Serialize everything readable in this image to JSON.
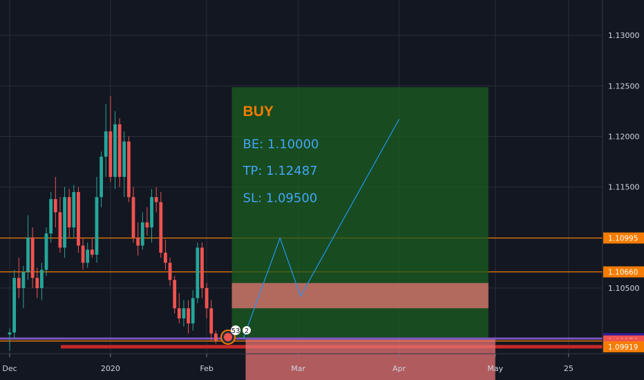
{
  "chart_data": {
    "type": "candlestick",
    "title": "",
    "xlabel": "",
    "ylabel": "",
    "ylim": [
      1.0985,
      1.1335
    ],
    "grid": true,
    "y_ticks": [
      "1.13000",
      "1.12500",
      "1.12000",
      "1.11500",
      "1.10500"
    ],
    "x_ticks": [
      {
        "label": "Dec",
        "index": 0
      },
      {
        "label": "2020",
        "index": 22
      },
      {
        "label": "Feb",
        "index": 43
      },
      {
        "label": "Mar",
        "index": 63
      },
      {
        "label": "Apr",
        "index": 85
      },
      {
        "label": "May",
        "index": 106
      },
      {
        "label": "25",
        "index": 122
      }
    ],
    "candles": [
      [
        1.1004,
        1.101,
        1.0988,
        1.1006
      ],
      [
        1.1006,
        1.1068,
        1.1,
        1.106
      ],
      [
        1.106,
        1.108,
        1.104,
        1.105
      ],
      [
        1.105,
        1.1072,
        1.103,
        1.1066
      ],
      [
        1.1066,
        1.1122,
        1.1058,
        1.11
      ],
      [
        1.11,
        1.111,
        1.105,
        1.106
      ],
      [
        1.106,
        1.107,
        1.104,
        1.105
      ],
      [
        1.105,
        1.1075,
        1.1038,
        1.1068
      ],
      [
        1.1068,
        1.111,
        1.1062,
        1.1104
      ],
      [
        1.1104,
        1.1145,
        1.1095,
        1.1138
      ],
      [
        1.1138,
        1.116,
        1.111,
        1.1125
      ],
      [
        1.1125,
        1.114,
        1.1085,
        1.109
      ],
      [
        1.109,
        1.115,
        1.108,
        1.114
      ],
      [
        1.114,
        1.1148,
        1.11,
        1.111
      ],
      [
        1.111,
        1.1152,
        1.11,
        1.1145
      ],
      [
        1.1145,
        1.115,
        1.1085,
        1.1092
      ],
      [
        1.1092,
        1.11,
        1.1068,
        1.1075
      ],
      [
        1.1075,
        1.1095,
        1.107,
        1.1088
      ],
      [
        1.1088,
        1.11,
        1.108,
        1.1083
      ],
      [
        1.1083,
        1.116,
        1.1075,
        1.114
      ],
      [
        1.114,
        1.1185,
        1.113,
        1.118
      ],
      [
        1.118,
        1.1232,
        1.116,
        1.1205
      ],
      [
        1.1205,
        1.124,
        1.1155,
        1.116
      ],
      [
        1.116,
        1.1225,
        1.1148,
        1.1212
      ],
      [
        1.1212,
        1.1218,
        1.115,
        1.116
      ],
      [
        1.116,
        1.1205,
        1.114,
        1.1195
      ],
      [
        1.1195,
        1.12,
        1.1135,
        1.114
      ],
      [
        1.114,
        1.115,
        1.1095,
        1.11
      ],
      [
        1.11,
        1.1115,
        1.1082,
        1.1092
      ],
      [
        1.1092,
        1.1125,
        1.1088,
        1.1115
      ],
      [
        1.1115,
        1.113,
        1.1102,
        1.111
      ],
      [
        1.111,
        1.1148,
        1.1095,
        1.114
      ],
      [
        1.114,
        1.115,
        1.1125,
        1.1135
      ],
      [
        1.1135,
        1.1145,
        1.108,
        1.1085
      ],
      [
        1.1085,
        1.1098,
        1.1068,
        1.1075
      ],
      [
        1.1075,
        1.108,
        1.1052,
        1.1058
      ],
      [
        1.1058,
        1.1062,
        1.1025,
        1.103
      ],
      [
        1.103,
        1.1045,
        1.1015,
        1.102
      ],
      [
        1.102,
        1.1038,
        1.1012,
        1.103
      ],
      [
        1.103,
        1.1038,
        1.1005,
        1.1015
      ],
      [
        1.1015,
        1.1048,
        1.1008,
        1.104
      ],
      [
        1.104,
        1.1095,
        1.1035,
        1.109
      ],
      [
        1.109,
        1.1095,
        1.104,
        1.105
      ],
      [
        1.105,
        1.1055,
        1.102,
        1.103
      ],
      [
        1.103,
        1.1038,
        1.0998,
        1.1005
      ],
      [
        1.1005,
        1.1008,
        1.0995,
        1.0998
      ]
    ]
  },
  "price_axis": {
    "current_price_label": "1.10000",
    "tags": [
      {
        "text": "1.10995",
        "value": 1.10995,
        "color": "#f57c00"
      },
      {
        "text": "1.10660",
        "value": 1.1066,
        "color": "#f57c00"
      },
      {
        "text": "1.10000",
        "value": 1.1,
        "color": "#311b92"
      },
      {
        "text": "1.09976",
        "value": 1.09976,
        "color": "#ef5350"
      },
      {
        "text": "18:12:40",
        "value": 1.09945,
        "color": "#ef5350"
      },
      {
        "text": "1.09919",
        "value": 1.09919,
        "color": "#f57c00"
      }
    ]
  },
  "levels": [
    {
      "value": 1.10995,
      "color": "#f57c00"
    },
    {
      "value": 1.1066,
      "color": "#f57c00"
    },
    {
      "value": 1.09976,
      "color": "#f57c00"
    },
    {
      "value": 1.09919,
      "color": "#c62828"
    }
  ],
  "trade_box": {
    "label": "BUY",
    "be_label": "BE: 1.10000",
    "tp_label": "TP: 1.12487",
    "sl_label": "SL: 1.09500",
    "colors": {
      "profit": "#1b5e20",
      "loss": "#e57373",
      "text_buy": "#f57c00",
      "text_info": "#42a5f5"
    }
  },
  "events": {
    "badge_count_a": "53",
    "badge_count_b": "2"
  },
  "colors": {
    "up": "#26a69a",
    "down": "#ef5350",
    "background": "#131722",
    "grid": "#2a2e39",
    "axis_text": "#d1d4dc"
  }
}
